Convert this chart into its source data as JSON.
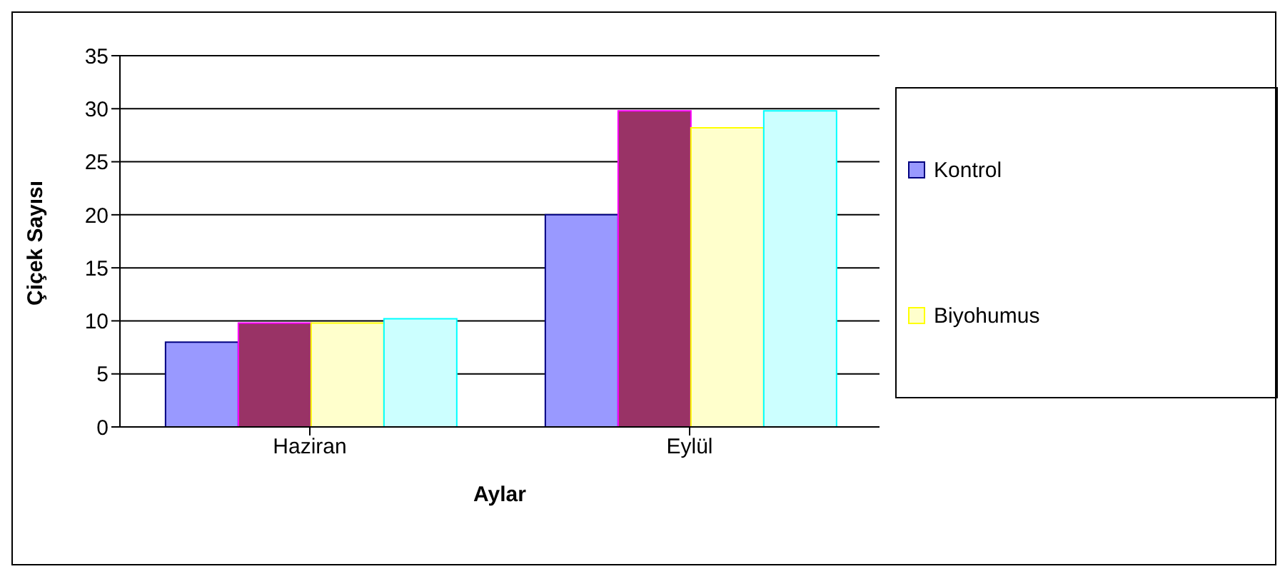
{
  "chart_data": {
    "type": "bar",
    "xlabel": "Aylar",
    "ylabel": "Çiçek Sayısı",
    "categories": [
      "Haziran",
      "Eylül"
    ],
    "series": [
      {
        "name": "Kontrol",
        "color": "#9999ff",
        "values": [
          8,
          20
        ]
      },
      {
        "color": "#993366",
        "values": [
          9.8,
          29.8
        ]
      },
      {
        "name": "Biyohumus",
        "color": "#ffffcc",
        "values": [
          9.8,
          28.2
        ]
      },
      {
        "color": "#ccffff",
        "values": [
          10.2,
          29.8
        ]
      }
    ],
    "ylim": [
      0,
      35
    ],
    "yticks": [
      0,
      5,
      10,
      15,
      20,
      25,
      30,
      35
    ],
    "grid": "y",
    "legend": "right"
  }
}
